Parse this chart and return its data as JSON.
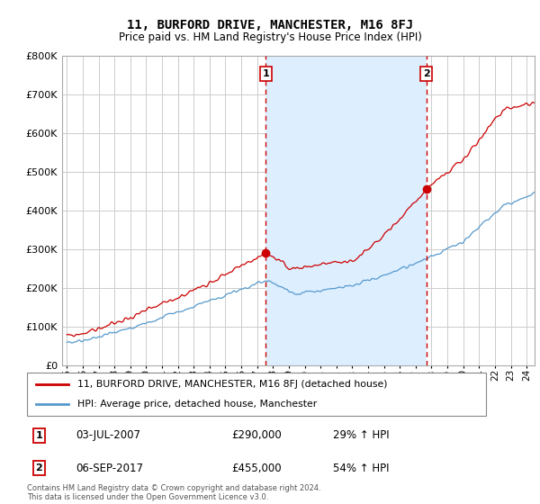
{
  "title": "11, BURFORD DRIVE, MANCHESTER, M16 8FJ",
  "subtitle": "Price paid vs. HM Land Registry's House Price Index (HPI)",
  "ylim": [
    0,
    800000
  ],
  "yticks": [
    0,
    100000,
    200000,
    300000,
    400000,
    500000,
    600000,
    700000,
    800000
  ],
  "background_color": "#ffffff",
  "grid_color": "#cccccc",
  "sale1_date": 2007.54,
  "sale1_price": 290000,
  "sale1_text": "03-JUL-2007",
  "sale1_amount": "£290,000",
  "sale1_hpi": "29% ↑ HPI",
  "sale2_date": 2017.67,
  "sale2_price": 455000,
  "sale2_text": "06-SEP-2017",
  "sale2_amount": "£455,000",
  "sale2_hpi": "54% ↑ HPI",
  "line1_color": "#cc0000",
  "line2_color": "#5599cc",
  "shade_color": "#ddeeff",
  "legend1_label": "11, BURFORD DRIVE, MANCHESTER, M16 8FJ (detached house)",
  "legend2_label": "HPI: Average price, detached house, Manchester",
  "footer": "Contains HM Land Registry data © Crown copyright and database right 2024.\nThis data is licensed under the Open Government Licence v3.0.",
  "xstart": 1995,
  "xend": 2025
}
